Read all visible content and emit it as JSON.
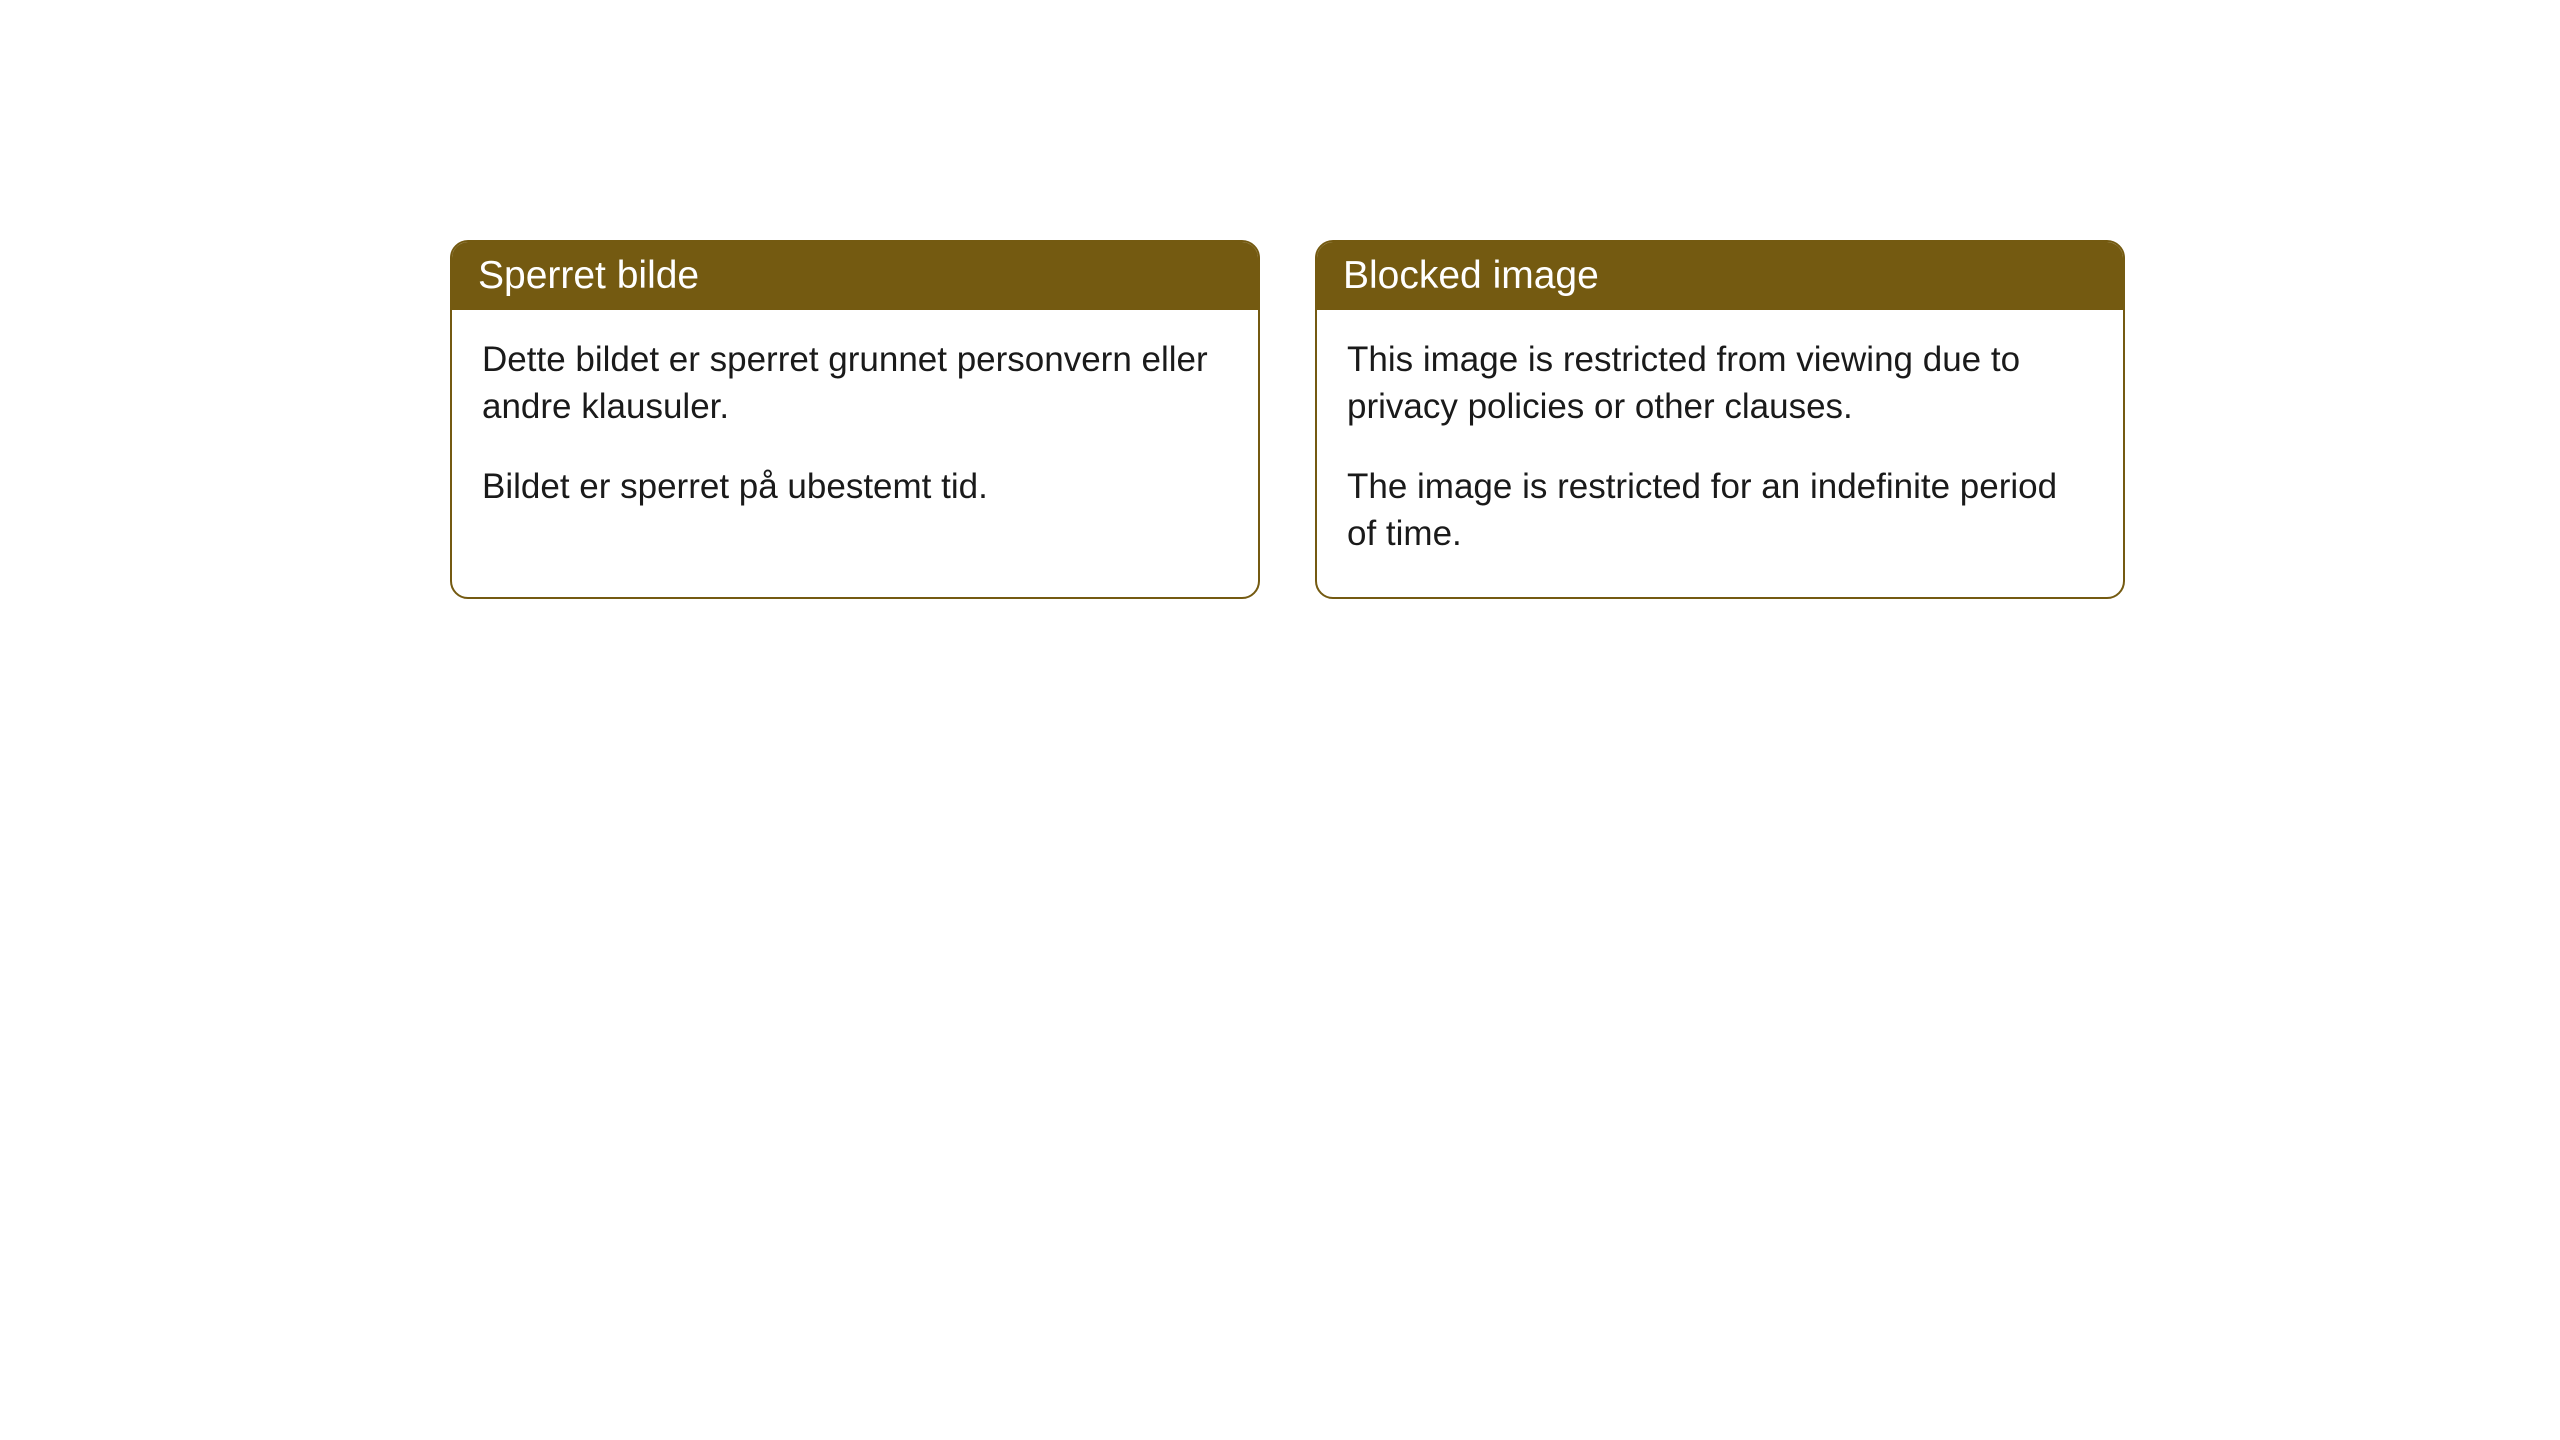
{
  "cards": [
    {
      "title": "Sperret bilde",
      "paragraph1": "Dette bildet er sperret grunnet personvern eller andre klausuler.",
      "paragraph2": "Bildet er sperret på ubestemt tid."
    },
    {
      "title": "Blocked image",
      "paragraph1": "This image is restricted from viewing due to privacy policies or other clauses.",
      "paragraph2": "The image is restricted for an indefinite period of time."
    }
  ],
  "styling": {
    "header_background": "#745a11",
    "header_text_color": "#ffffff",
    "border_color": "#745a11",
    "body_text_color": "#1a1a1a",
    "card_background": "#ffffff",
    "page_background": "#ffffff",
    "border_radius": 18,
    "title_fontsize": 39,
    "body_fontsize": 35
  }
}
